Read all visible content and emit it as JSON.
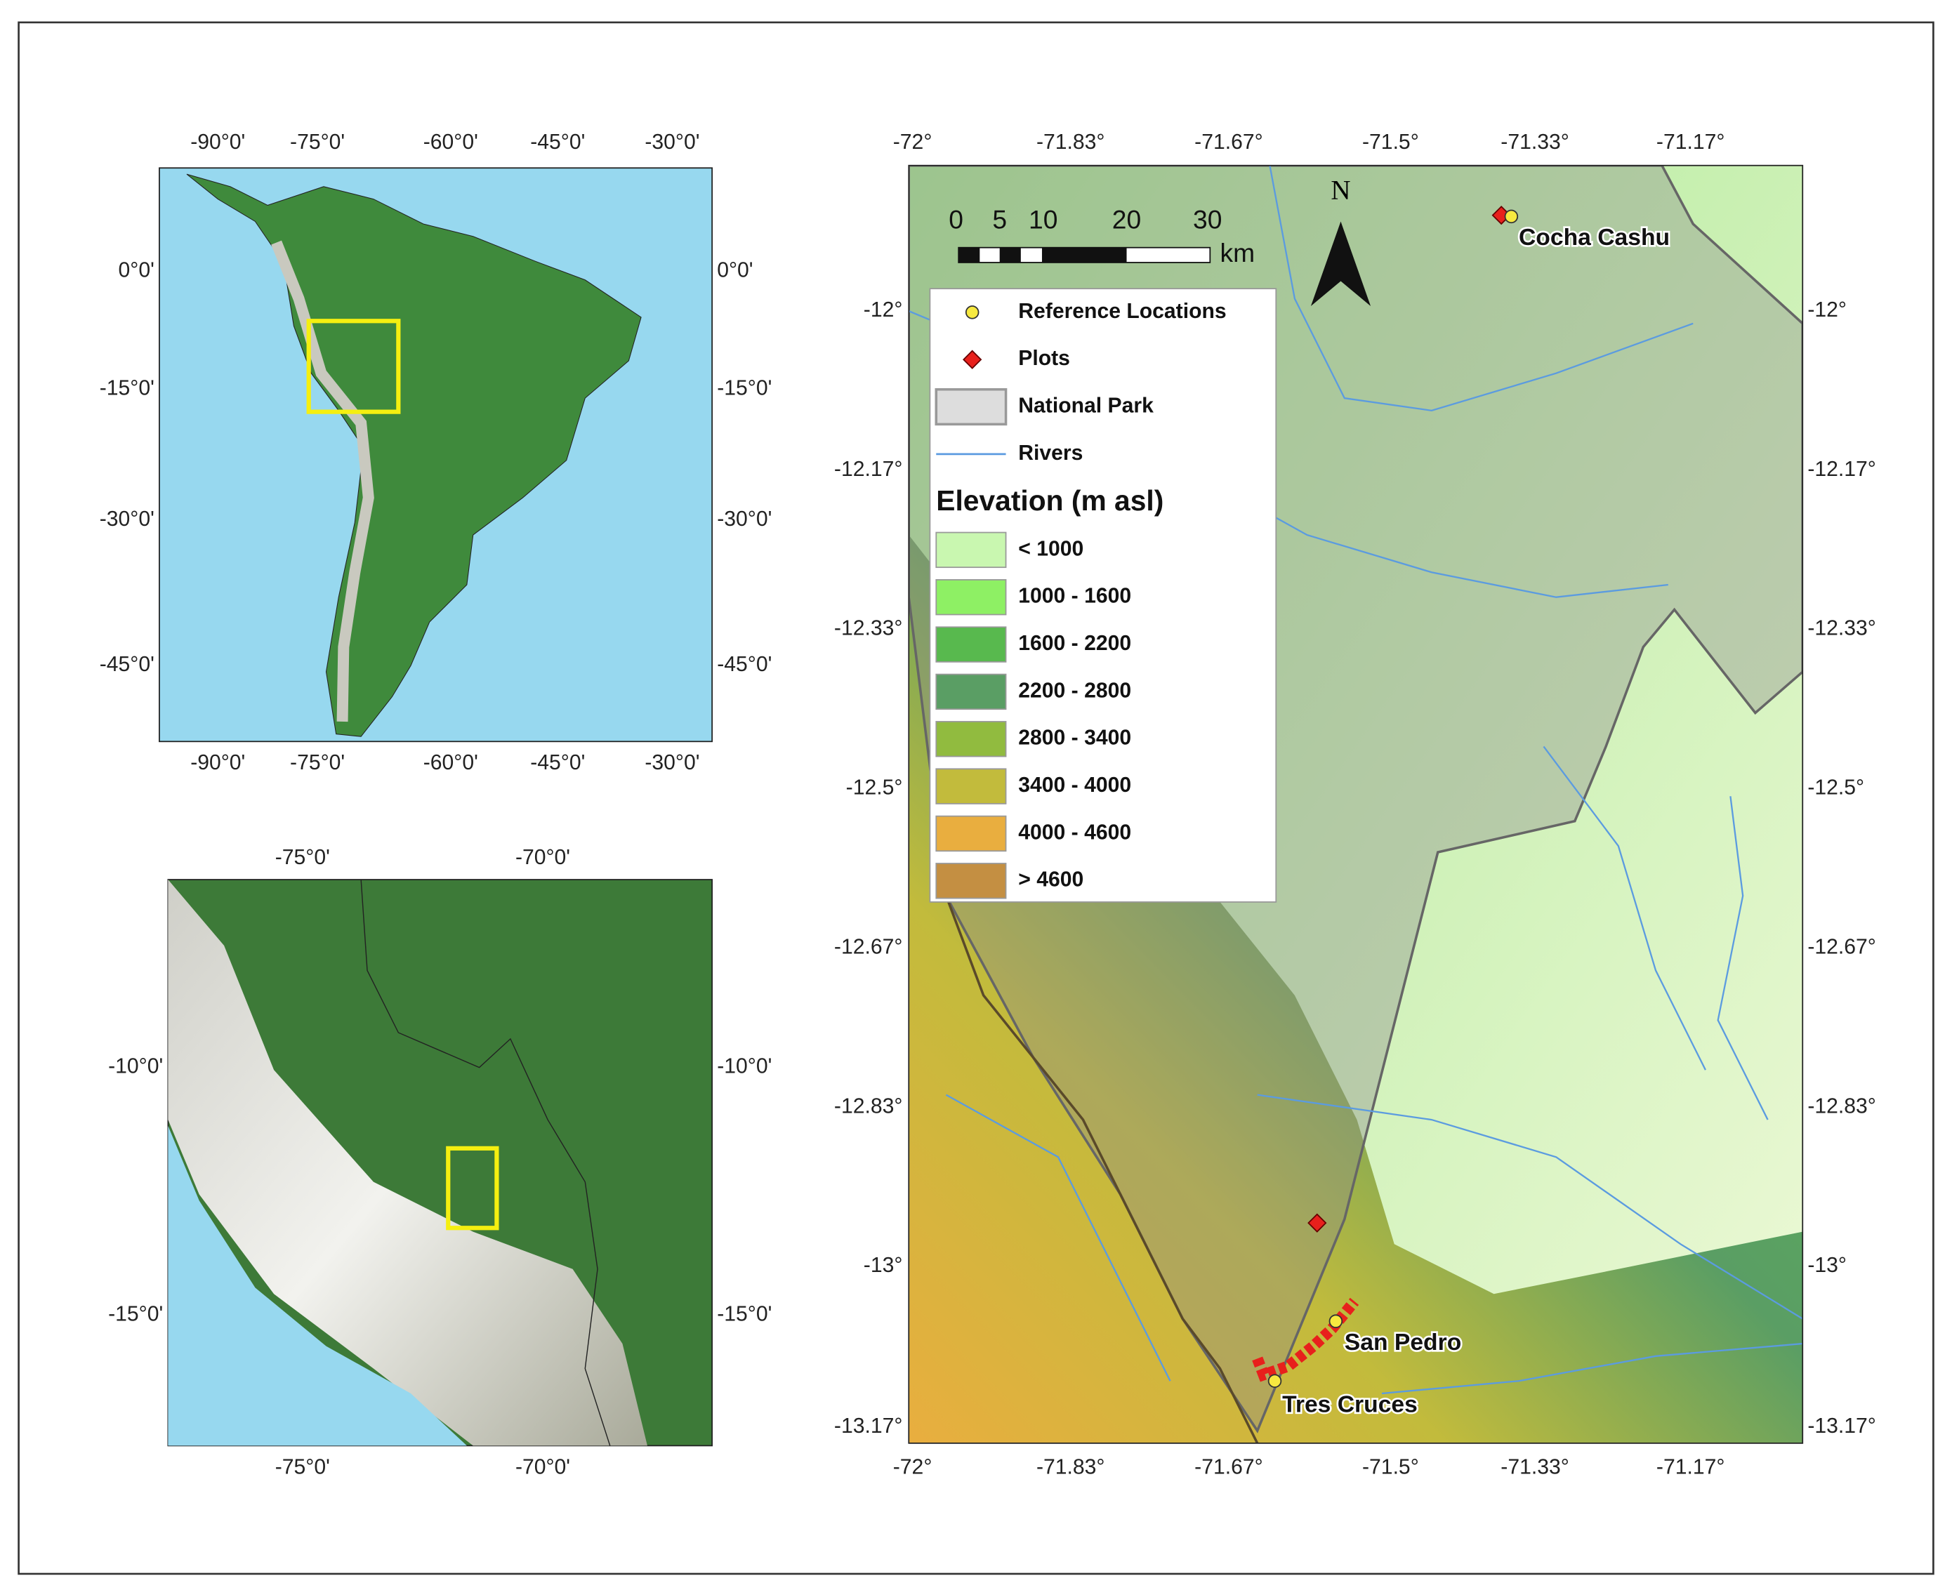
{
  "panels": [
    {
      "x_ticks": [
        "-90°0'",
        "-75°0'",
        "-60°0'",
        "-45°0'",
        "-30°0'"
      ],
      "y_ticks": [
        "0°0'",
        "-15°0'",
        "-30°0'",
        "-45°0'"
      ]
    },
    {
      "x_ticks": [
        "-75°0'",
        "-70°0'"
      ],
      "y_ticks": [
        "-10°0'",
        "-15°0'"
      ]
    },
    {
      "x_ticks": [
        "-72°",
        "-71.83°",
        "-71.67°",
        "-71.5°",
        "-71.33°",
        "-71.17°"
      ],
      "y_ticks": [
        "-12°",
        "-12.17°",
        "-12.33°",
        "-12.5°",
        "-12.67°",
        "-12.83°",
        "-13°",
        "-13.17°"
      ]
    }
  ],
  "scale_bar": {
    "labels": [
      "0",
      "5",
      "10",
      "20",
      "30"
    ],
    "unit": "km"
  },
  "north": "N",
  "places": [
    "Cocha Cashu",
    "San Pedro",
    "Tres Cruces"
  ],
  "legend": {
    "items": [
      "Reference Locations",
      "Plots",
      "National Park",
      "Rivers"
    ],
    "elevation_title": "Elevation (m asl)",
    "elevation": [
      {
        "label": "< 1000",
        "color": "#c9f7b0"
      },
      {
        "label": "1000 - 1600",
        "color": "#8ef064"
      },
      {
        "label": "1600 - 2200",
        "color": "#58b94e"
      },
      {
        "label": "2200 - 2800",
        "color": "#5a9e64"
      },
      {
        "label": "2800 - 3400",
        "color": "#91bb3f"
      },
      {
        "label": "3400 - 4000",
        "color": "#c2bb3c"
      },
      {
        "label": "4000 - 4600",
        "color": "#e9ae3f"
      },
      {
        "label": "> 4600",
        "color": "#c48f42"
      }
    ]
  }
}
